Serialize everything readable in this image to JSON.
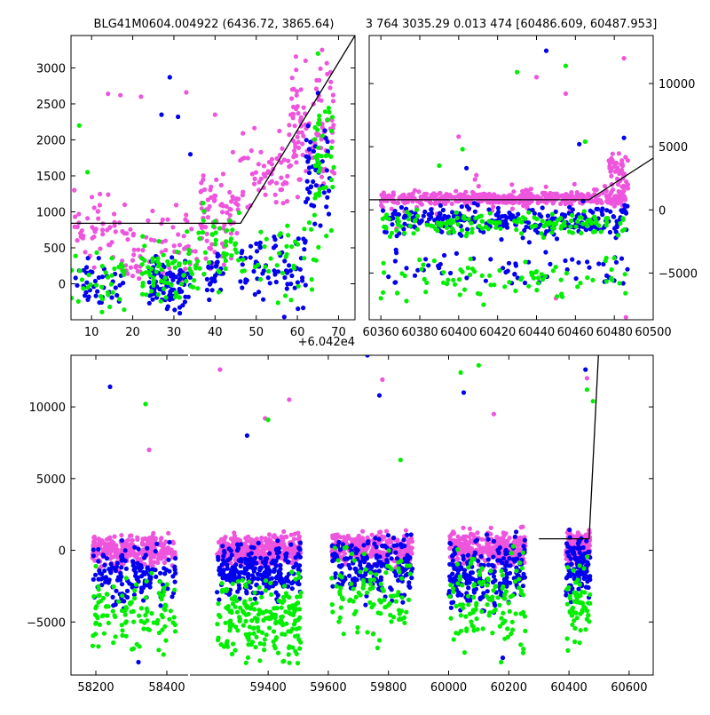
{
  "figure": {
    "title_left": "BLG41M0604.004922 (6436.72, 3865.64)",
    "title_right": "3 764 3035.29 0.013 474 [60486.609, 60487.953]"
  },
  "colors": {
    "band_a": "#0000ee",
    "band_b": "#00ee00",
    "band_c": "#ee55dd",
    "model_line": "#000000"
  },
  "chart_data": [
    {
      "type": "scatter",
      "panel": "top-left",
      "x_offset_label": "+6.042e4",
      "xlim": [
        5,
        74
      ],
      "ylim": [
        -500,
        3450
      ],
      "xticks": [
        10,
        20,
        30,
        40,
        50,
        60,
        70
      ],
      "yticks": [
        0,
        500,
        1000,
        1500,
        2000,
        2500,
        3000
      ],
      "ytick_side": "left",
      "model_line": {
        "x": [
          5,
          46.2,
          74
        ],
        "y": [
          840,
          840,
          3450
        ]
      },
      "series": [
        {
          "color": "#ee55dd",
          "clusters": [
            {
              "x": [
                5,
                16
              ],
              "y": [
                0,
                1600
              ],
              "n": 45
            },
            {
              "x": [
                16,
                36
              ],
              "y": [
                -300,
                1300
              ],
              "n": 70
            },
            {
              "x": [
                36,
                46
              ],
              "y": [
                -200,
                2100
              ],
              "n": 80
            },
            {
              "x": [
                46,
                58
              ],
              "y": [
                600,
                2300
              ],
              "n": 55
            },
            {
              "x": [
                58,
                69
              ],
              "y": [
                1000,
                3300
              ],
              "n": 110
            }
          ],
          "extras": [
            [
              14,
              2640
            ],
            [
              22,
              2600
            ],
            [
              33,
              2660
            ],
            [
              40,
              2350
            ],
            [
              17,
              2620
            ],
            [
              62,
              3100
            ],
            [
              66,
              3250
            ]
          ]
        },
        {
          "color": "#0000ee",
          "clusters": [
            {
              "x": [
                6,
                18
              ],
              "y": [
                -500,
                500
              ],
              "n": 40
            },
            {
              "x": [
                24,
                34
              ],
              "y": [
                -500,
                500
              ],
              "n": 90
            },
            {
              "x": [
                38,
                42
              ],
              "y": [
                -300,
                600
              ],
              "n": 30
            },
            {
              "x": [
                46,
                62
              ],
              "y": [
                -500,
                900
              ],
              "n": 70
            },
            {
              "x": [
                62,
                68
              ],
              "y": [
                600,
                2600
              ],
              "n": 45
            }
          ],
          "extras": [
            [
              29,
              2870
            ],
            [
              31,
              2320
            ],
            [
              27,
              2350
            ],
            [
              34,
              1800
            ],
            [
              65,
              2650
            ]
          ]
        },
        {
          "color": "#00ee00",
          "clusters": [
            {
              "x": [
                5,
                18
              ],
              "y": [
                -500,
                700
              ],
              "n": 35
            },
            {
              "x": [
                22,
                36
              ],
              "y": [
                -500,
                800
              ],
              "n": 70
            },
            {
              "x": [
                36,
                46
              ],
              "y": [
                -300,
                1400
              ],
              "n": 40
            },
            {
              "x": [
                46,
                66
              ],
              "y": [
                -500,
                1200
              ],
              "n": 40
            },
            {
              "x": [
                64,
                69
              ],
              "y": [
                500,
                3000
              ],
              "n": 45
            }
          ],
          "extras": [
            [
              7,
              2200
            ],
            [
              9,
              1550
            ],
            [
              65,
              3200
            ]
          ]
        }
      ]
    },
    {
      "type": "scatter",
      "panel": "top-right",
      "xlim": [
        60354,
        60500
      ],
      "ylim": [
        -8700,
        13800
      ],
      "xticks": [
        60360,
        60380,
        60400,
        60420,
        60440,
        60460,
        60480,
        60500
      ],
      "yticks": [
        -5000,
        0,
        5000,
        10000
      ],
      "ytick_side": "right",
      "model_line": {
        "x": [
          60354,
          60467,
          60500
        ],
        "y": [
          800,
          800,
          4100
        ]
      },
      "series": [
        {
          "color": "#ee55dd",
          "clusters": [
            {
              "x": [
                60360,
                60486
              ],
              "y": [
                200,
                1600
              ],
              "n": 420
            },
            {
              "x": [
                60360,
                60486
              ],
              "y": [
                -1200,
                3200
              ],
              "n": 60
            },
            {
              "x": [
                60477,
                60487
              ],
              "y": [
                500,
                5200
              ],
              "n": 50
            }
          ],
          "extras": [
            [
              60485,
              12000
            ],
            [
              60440,
              10500
            ],
            [
              60455,
              9200
            ],
            [
              60400,
              5800
            ],
            [
              60368,
              -1500
            ],
            [
              60486,
              -8500
            ],
            [
              60450,
              -7000
            ]
          ]
        },
        {
          "color": "#0000ee",
          "clusters": [
            {
              "x": [
                60360,
                60487
              ],
              "y": [
                -2500,
                900
              ],
              "n": 260
            },
            {
              "x": [
                60360,
                60487
              ],
              "y": [
                -7000,
                -2000
              ],
              "n": 60
            }
          ],
          "extras": [
            [
              60445,
              12600
            ],
            [
              60462,
              5200
            ],
            [
              60485,
              5700
            ],
            [
              60404,
              3300
            ]
          ]
        },
        {
          "color": "#00ee00",
          "clusters": [
            {
              "x": [
                60360,
                60487
              ],
              "y": [
                -2500,
                300
              ],
              "n": 150
            },
            {
              "x": [
                60360,
                60487
              ],
              "y": [
                -8200,
                -2500
              ],
              "n": 80
            }
          ],
          "extras": [
            [
              60430,
              10900
            ],
            [
              60455,
              11400
            ],
            [
              60465,
              5400
            ],
            [
              60390,
              3500
            ],
            [
              60402,
              4800
            ]
          ]
        }
      ]
    },
    {
      "type": "scatter",
      "panel": "bottom",
      "x_axis_break": true,
      "xticks": [
        58200,
        58400,
        59400,
        59600,
        59800,
        60000,
        60200,
        60400,
        60600
      ],
      "ylim": [
        -8700,
        13600
      ],
      "yticks": [
        -5000,
        0,
        5000,
        10000
      ],
      "ytick_side": "left",
      "model_line": {
        "x": [
          60300,
          60467,
          60500
        ],
        "y": [
          800,
          800,
          14500
        ]
      },
      "series": [
        {
          "color": "#ee55dd",
          "clusters": [
            {
              "x": [
                58190,
                58425
              ],
              "y": [
                -1500,
                1500
              ],
              "n": 280
            },
            {
              "x": [
                59230,
                59510
              ],
              "y": [
                -1500,
                1500
              ],
              "n": 380
            },
            {
              "x": [
                59610,
                59880
              ],
              "y": [
                -1500,
                1700
              ],
              "n": 280
            },
            {
              "x": [
                60000,
                60255
              ],
              "y": [
                -1600,
                1800
              ],
              "n": 280
            },
            {
              "x": [
                60390,
                60470
              ],
              "y": [
                -1500,
                1800
              ],
              "n": 180
            }
          ],
          "extras": [
            [
              58350,
              7000
            ],
            [
              59240,
              12600
            ],
            [
              59390,
              9200
            ],
            [
              59470,
              10500
            ],
            [
              59780,
              11900
            ],
            [
              60150,
              9500
            ],
            [
              60460,
              12000
            ],
            [
              59750,
              -5800
            ]
          ]
        },
        {
          "color": "#0000ee",
          "clusters": [
            {
              "x": [
                58190,
                58425
              ],
              "y": [
                -5000,
                1200
              ],
              "n": 150
            },
            {
              "x": [
                59230,
                59510
              ],
              "y": [
                -4200,
                1200
              ],
              "n": 250
            },
            {
              "x": [
                59610,
                59880
              ],
              "y": [
                -4500,
                2000
              ],
              "n": 190
            },
            {
              "x": [
                60000,
                60255
              ],
              "y": [
                -5000,
                1800
              ],
              "n": 210
            },
            {
              "x": [
                60390,
                60470
              ],
              "y": [
                -4000,
                1800
              ],
              "n": 110
            }
          ],
          "extras": [
            [
              58240,
              11400
            ],
            [
              59330,
              8000
            ],
            [
              59730,
              13600
            ],
            [
              59770,
              10800
            ],
            [
              60050,
              11000
            ],
            [
              60455,
              12600
            ],
            [
              58320,
              -7800
            ],
            [
              60180,
              -7500
            ]
          ]
        },
        {
          "color": "#00ee00",
          "clusters": [
            {
              "x": [
                58190,
                58425
              ],
              "y": [
                -8300,
                -500
              ],
              "n": 110
            },
            {
              "x": [
                59230,
                59510
              ],
              "y": [
                -8700,
                -800
              ],
              "n": 210
            },
            {
              "x": [
                59610,
                59880
              ],
              "y": [
                -8000,
                1500
              ],
              "n": 100
            },
            {
              "x": [
                60000,
                60255
              ],
              "y": [
                -8500,
                1500
              ],
              "n": 120
            },
            {
              "x": [
                60390,
                60470
              ],
              "y": [
                -8000,
                500
              ],
              "n": 60
            }
          ],
          "extras": [
            [
              58340,
              10200
            ],
            [
              59400,
              9100
            ],
            [
              60100,
              12900
            ],
            [
              60040,
              12400
            ],
            [
              60460,
              11200
            ],
            [
              60480,
              10400
            ],
            [
              59840,
              6300
            ]
          ]
        }
      ]
    }
  ]
}
